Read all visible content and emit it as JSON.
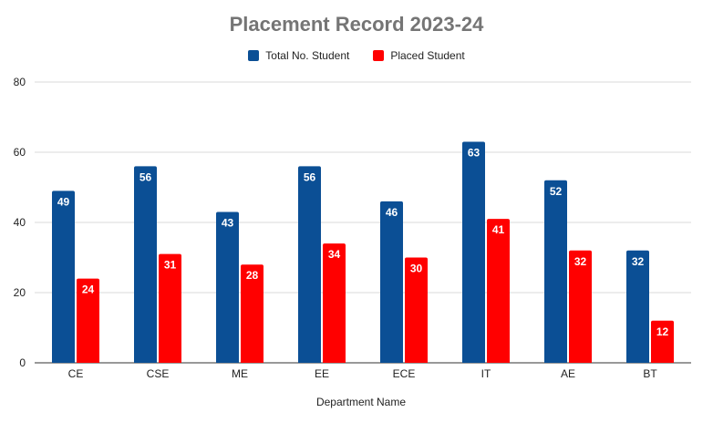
{
  "chart_data": {
    "type": "bar",
    "title": "Placement Record 2023-24",
    "xlabel": "Department Name",
    "ylabel": "",
    "categories": [
      "CE",
      "CSE",
      "ME",
      "EE",
      "ECE",
      "IT",
      "AE",
      "BT"
    ],
    "series": [
      {
        "name": "Total No. Student",
        "color": "#0b4f95",
        "values": [
          49,
          56,
          43,
          56,
          46,
          63,
          52,
          32
        ]
      },
      {
        "name": "Placed Student",
        "color": "#ff0000",
        "values": [
          24,
          31,
          28,
          34,
          30,
          41,
          32,
          12
        ]
      }
    ],
    "ylim": [
      0,
      80
    ],
    "yticks": [
      0,
      20,
      40,
      60,
      80
    ],
    "grid": true,
    "legend_position": "top",
    "data_labels": true
  }
}
